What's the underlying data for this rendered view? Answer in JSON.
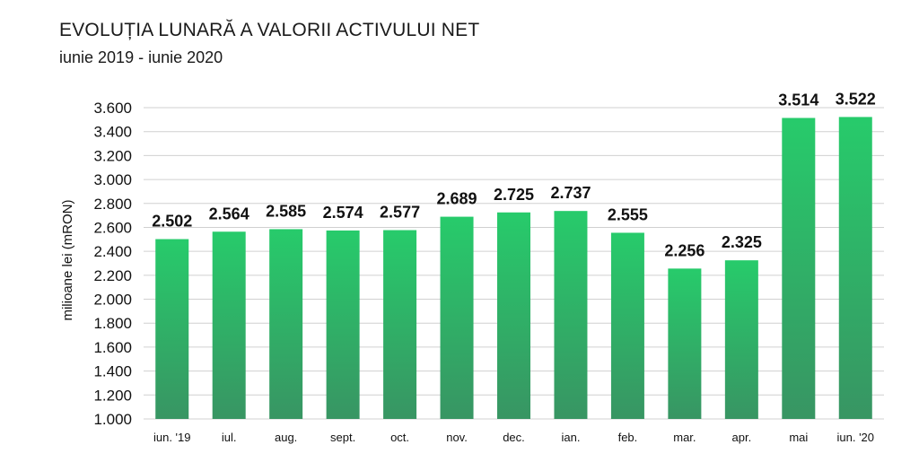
{
  "header": {
    "title": "EVOLUȚIA LUNARĂ A VALORII ACTIVULUI NET",
    "subtitle": "iunie 2019 - iunie 2020"
  },
  "colors": {
    "bar_top": "#27cb6b",
    "bar_bottom": "#389563",
    "grid": "#d0d0d0"
  },
  "chart_data": {
    "type": "bar",
    "title": "EVOLUȚIA LUNARĂ A VALORII ACTIVULUI NET",
    "subtitle": "iunie 2019 - iunie 2020",
    "xlabel": "",
    "ylabel": "milioane lei (mRON)",
    "categories": [
      "iun. '19",
      "iul.",
      "aug.",
      "sept.",
      "oct.",
      "nov.",
      "dec.",
      "ian.",
      "feb.",
      "mar.",
      "apr.",
      "mai",
      "iun. '20"
    ],
    "values": [
      2502,
      2564,
      2585,
      2574,
      2577,
      2689,
      2725,
      2737,
      2555,
      2256,
      2325,
      3514,
      3522
    ],
    "value_labels": [
      "2.502",
      "2.564",
      "2.585",
      "2.574",
      "2.577",
      "2.689",
      "2.725",
      "2.737",
      "2.555",
      "2.256",
      "2.325",
      "3.514",
      "3.522"
    ],
    "yticks": [
      1000,
      1200,
      1400,
      1600,
      1800,
      2000,
      2200,
      2400,
      2600,
      2800,
      3000,
      3200,
      3400,
      3600
    ],
    "ytick_labels": [
      "1.000",
      "1.200",
      "1.400",
      "1.600",
      "1.800",
      "2.000",
      "2.200",
      "2.400",
      "2.600",
      "2.800",
      "3.000",
      "3.200",
      "3.400",
      "3.600"
    ],
    "ylim": [
      1000,
      3600
    ],
    "grid": true,
    "legend": "none"
  }
}
